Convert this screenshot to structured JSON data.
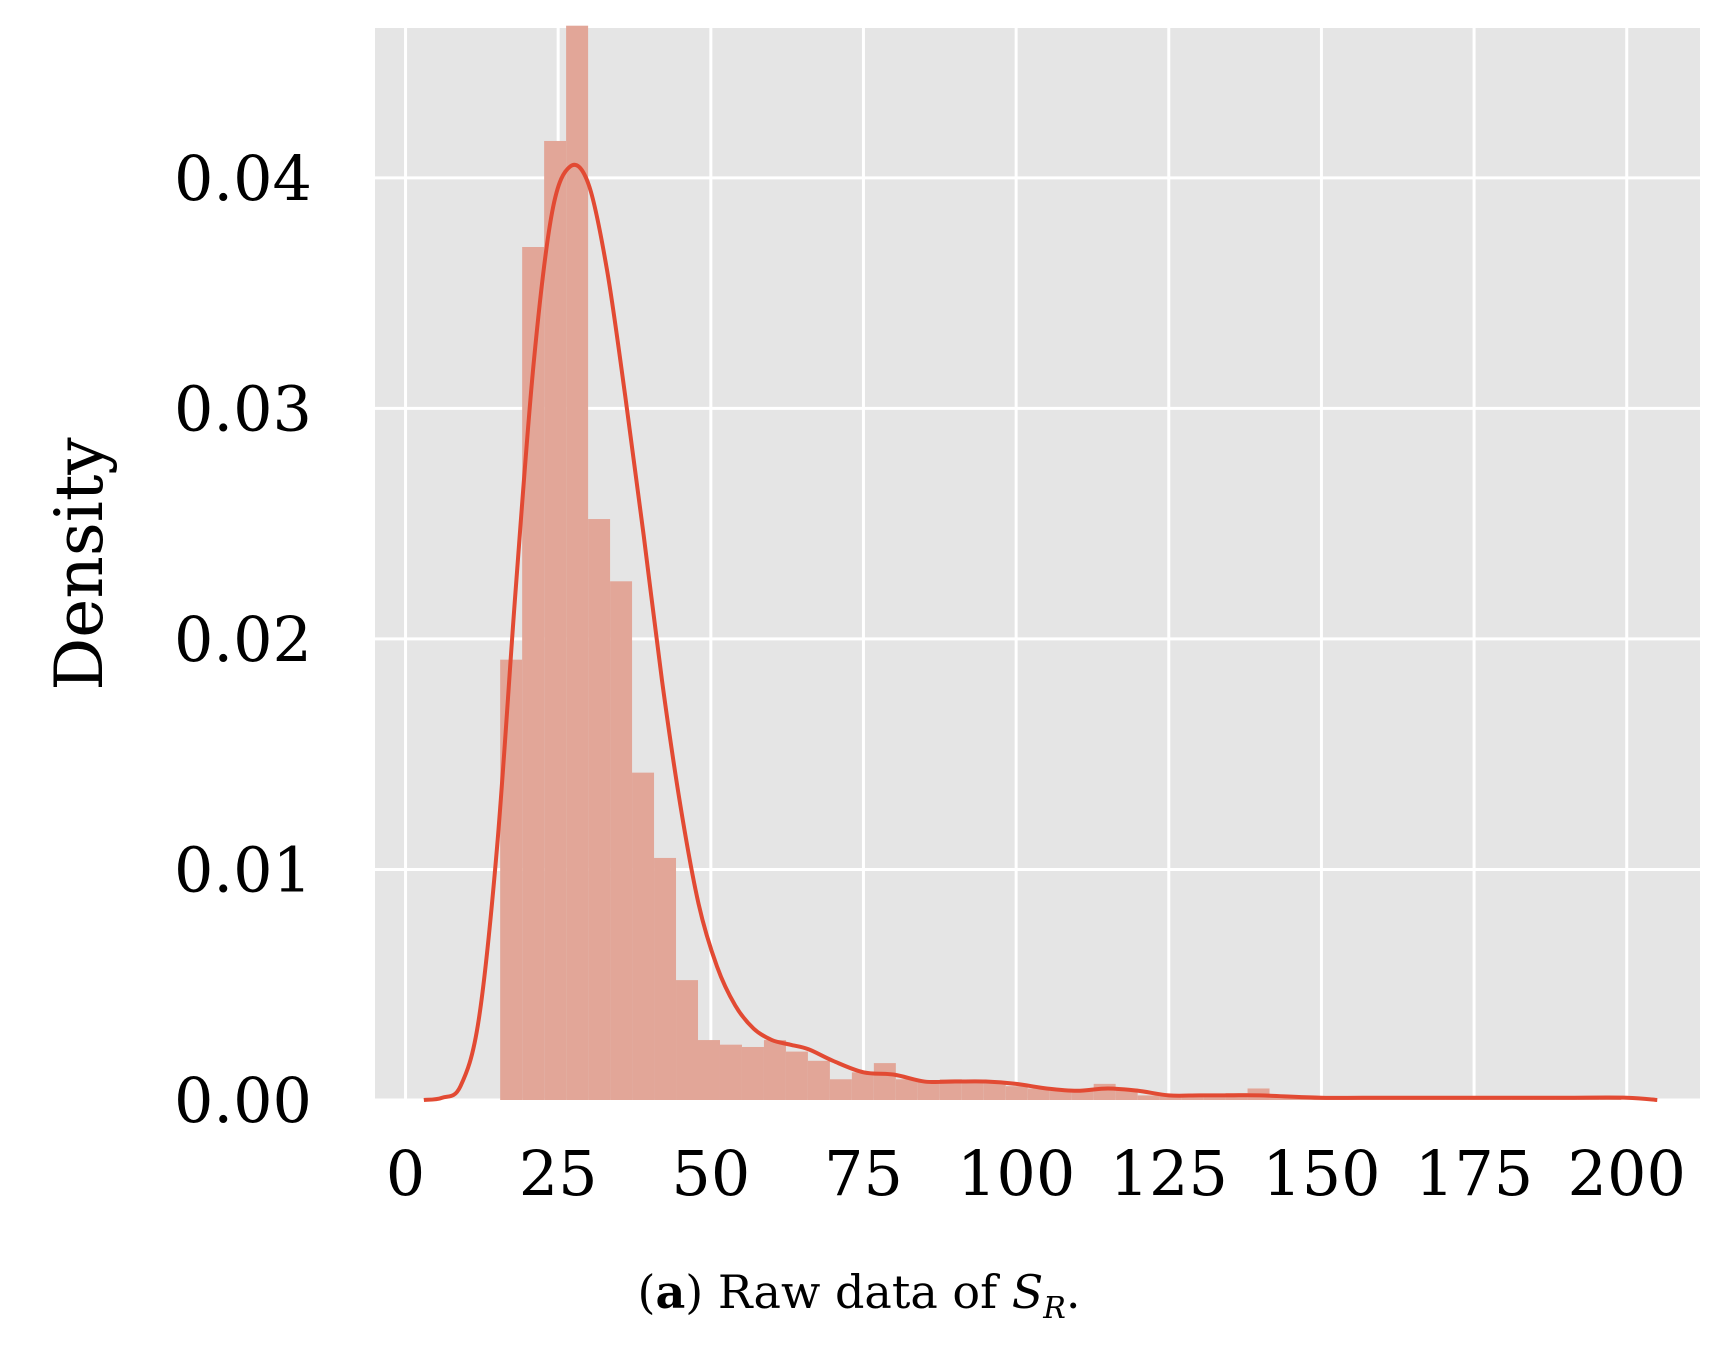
{
  "chart_data": {
    "type": "bar",
    "histogram_bins": {
      "edges": [
        15.5,
        19.1,
        22.7,
        26.3,
        29.9,
        33.5,
        37.1,
        40.7,
        44.3,
        47.9,
        51.5,
        55.1,
        58.7,
        62.3,
        65.9,
        69.5,
        73.1,
        76.7,
        80.3,
        83.9,
        87.5,
        91.1,
        94.7,
        98.3,
        101.9,
        105.5,
        109.1,
        112.7,
        116.3,
        119.9,
        123.5,
        127.1,
        130.7,
        134.3,
        137.9,
        141.5,
        145.1,
        148.7,
        152.3,
        155.9,
        159.5,
        163.1,
        166.7,
        170.3,
        173.9,
        177.5,
        181.1,
        184.7,
        188.3,
        191.9,
        195.5,
        199.1
      ],
      "density": [
        0.0191,
        0.037,
        0.0416,
        0.0466,
        0.0252,
        0.0225,
        0.0142,
        0.0105,
        0.0052,
        0.0026,
        0.0024,
        0.0023,
        0.0026,
        0.0021,
        0.0017,
        0.0009,
        0.0012,
        0.0016,
        0.0009,
        0.0008,
        0.0009,
        0.0008,
        0.0008,
        0.0006,
        0.0005,
        0.0004,
        0.0004,
        0.0007,
        0.0005,
        0.0002,
        0.0002,
        0.0002,
        0.0002,
        0.0003,
        0.0005,
        0.0002,
        0.0001,
        0.0001,
        0.0001,
        0.0001,
        0.0001,
        0.0001,
        0.0001,
        0.0001,
        0.0001,
        0.0001,
        0.0001,
        0.0001,
        0.0001,
        0.0001,
        0.0001
      ]
    },
    "kde_curve": {
      "x": [
        3,
        6,
        9,
        12,
        15,
        18,
        21,
        24,
        27,
        30,
        33,
        36,
        39,
        42,
        45,
        48,
        51,
        54,
        57,
        60,
        63,
        66,
        70,
        75,
        80,
        85,
        90,
        95,
        100,
        105,
        110,
        115,
        120,
        125,
        130,
        135,
        140,
        150,
        160,
        170,
        180,
        190,
        200,
        205
      ],
      "y": [
        0.0,
        0.0001,
        0.0006,
        0.0035,
        0.011,
        0.022,
        0.032,
        0.0385,
        0.0405,
        0.0397,
        0.036,
        0.0305,
        0.0245,
        0.0182,
        0.0128,
        0.0085,
        0.0058,
        0.0041,
        0.0031,
        0.0026,
        0.0024,
        0.0022,
        0.0017,
        0.0012,
        0.0011,
        0.0008,
        0.0008,
        0.0008,
        0.0007,
        0.0005,
        0.0004,
        0.0005,
        0.0004,
        0.0002,
        0.0002,
        0.0002,
        0.0002,
        0.0001,
        0.0001,
        0.0001,
        0.0001,
        0.0001,
        0.0001,
        0.0
      ]
    },
    "xlim": [
      -5,
      212
    ],
    "ylim": [
      0,
      0.0465
    ],
    "xticks": [
      0,
      25,
      50,
      75,
      100,
      125,
      150,
      175,
      200
    ],
    "xtick_labels": [
      "0",
      "25",
      "50",
      "75",
      "100",
      "125",
      "150",
      "175",
      "200"
    ],
    "yticks": [
      0.0,
      0.01,
      0.02,
      0.03,
      0.04
    ],
    "ytick_labels": [
      "0.00",
      "0.01",
      "0.02",
      "0.03",
      "0.04"
    ],
    "ylabel": "Density",
    "xlabel": "",
    "grid": true,
    "colors": {
      "background": "#e5e5e5",
      "grid": "#ffffff",
      "bars": "#e2a698",
      "kde": "#e24a33"
    }
  },
  "caption": {
    "label": "a",
    "text": ") Raw data of ",
    "symbol": "S",
    "subscript": "R",
    "end": "."
  }
}
